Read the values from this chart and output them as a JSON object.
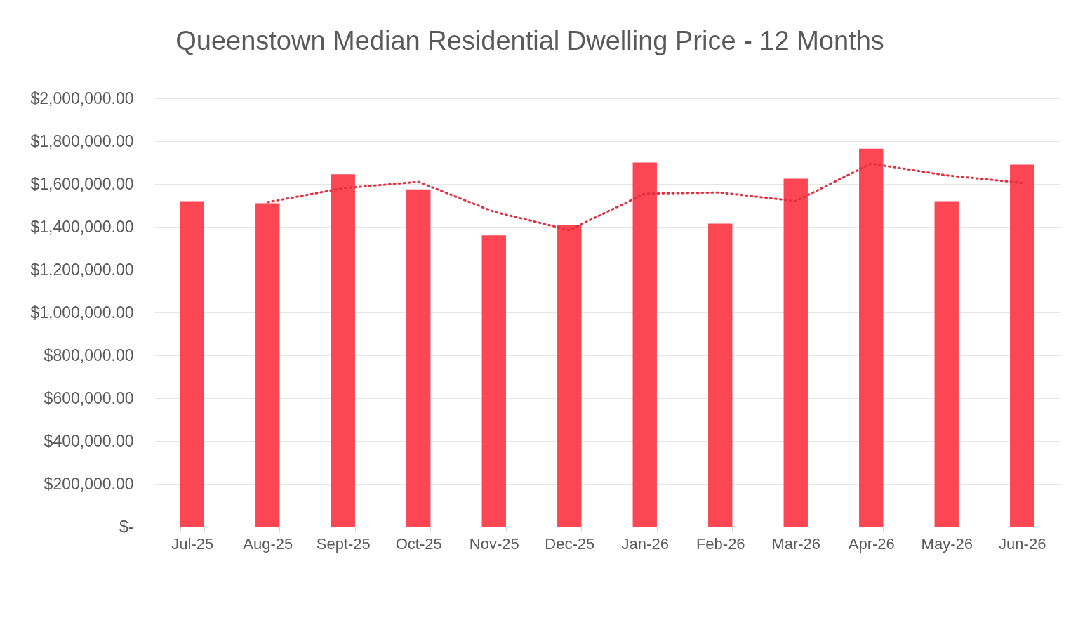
{
  "chart_data": {
    "type": "bar",
    "title": "Queenstown Median Residential Dwelling Price - 12 Months",
    "categories": [
      "Jul-25",
      "Aug-25",
      "Sept-25",
      "Oct-25",
      "Nov-25",
      "Dec-25",
      "Jan-26",
      "Feb-26",
      "Mar-26",
      "Apr-26",
      "May-26",
      "Jun-26"
    ],
    "series": [
      {
        "color": "#fd4654",
        "values": [
          1520000,
          1510000,
          1645000,
          1575000,
          1360000,
          1410000,
          1700000,
          1415000,
          1625000,
          1765000,
          1520000,
          1690000
        ]
      },
      {
        "type": "line",
        "color": "#e0303f",
        "line_style": "dotted",
        "values": [
          null,
          1515000,
          1580000,
          1610000,
          1470000,
          1385000,
          1555000,
          1560000,
          1520000,
          1695000,
          1640000,
          1605000
        ]
      }
    ],
    "ylim": [
      0,
      2000000
    ],
    "yticks": [
      {
        "value": 0,
        "label": "$-"
      },
      {
        "value": 200000,
        "label": "$200,000.00"
      },
      {
        "value": 400000,
        "label": "$400,000.00"
      },
      {
        "value": 600000,
        "label": "$600,000.00"
      },
      {
        "value": 800000,
        "label": "$800,000.00"
      },
      {
        "value": 1000000,
        "label": "$1,000,000.00"
      },
      {
        "value": 1200000,
        "label": "$1,200,000.00"
      },
      {
        "value": 1400000,
        "label": "$1,400,000.00"
      },
      {
        "value": 1600000,
        "label": "$1,600,000.00"
      },
      {
        "value": 1800000,
        "label": "$1,800,000.00"
      },
      {
        "value": 2000000,
        "label": "$2,000,000.00"
      }
    ],
    "grid": "y"
  }
}
